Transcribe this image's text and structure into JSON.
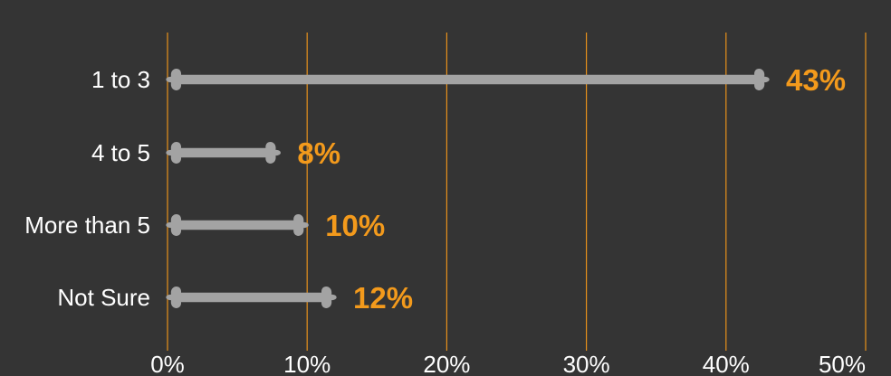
{
  "chart_data": {
    "type": "bar",
    "orientation": "horizontal",
    "title": "",
    "xlabel": "",
    "ylabel": "",
    "categories": [
      "1 to 3",
      "4 to 5",
      "More than 5",
      "Not Sure"
    ],
    "values": [
      43,
      8,
      10,
      12
    ],
    "value_labels": [
      "43%",
      "8%",
      "10%",
      "12%"
    ],
    "xlim": [
      0,
      50
    ],
    "ticks": [
      0,
      10,
      20,
      30,
      40,
      50
    ],
    "tick_labels": [
      "0%",
      "10%",
      "20%",
      "30%",
      "40%",
      "50%"
    ],
    "grid": true,
    "legend": "none",
    "colors": {
      "background": "#343434",
      "bar": "#a3a3a3",
      "gridline": "#e8911b",
      "value_label": "#f39a1c",
      "text": "#ffffff"
    }
  }
}
